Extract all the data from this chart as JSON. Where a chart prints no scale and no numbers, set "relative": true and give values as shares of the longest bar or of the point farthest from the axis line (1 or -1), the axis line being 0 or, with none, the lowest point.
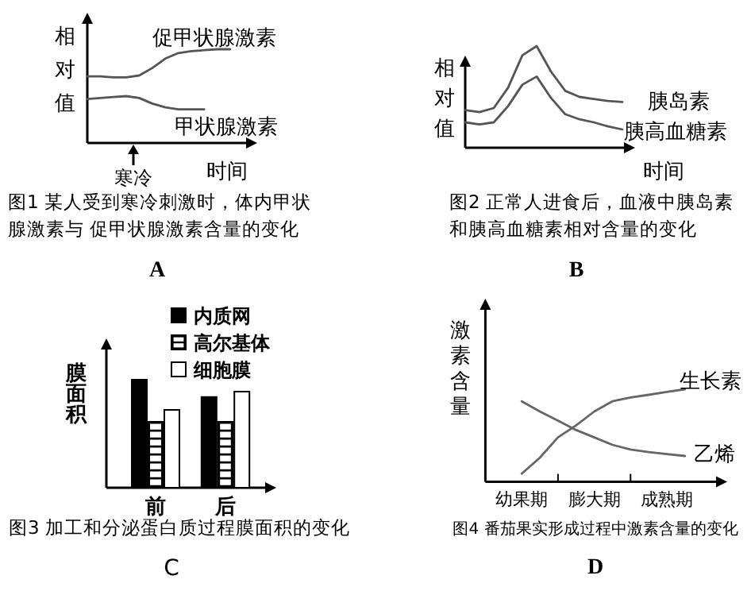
{
  "chart_data": [
    {
      "type": "line",
      "relative": true,
      "title": "图1 某人受到寒冷刺激时，体内甲状腺激素与 促甲状腺激素含量的变化",
      "xlabel": "时间",
      "ylabel": "相对值",
      "annotations": [
        "寒冷",
        "A"
      ],
      "categories": [
        null,
        null,
        null,
        null,
        null,
        null,
        null,
        null,
        null,
        null,
        null,
        null
      ],
      "series": [
        {
          "name": "促甲状腺激素",
          "color": "#555555",
          "values": [
            0.71,
            0.71,
            0.7,
            0.7,
            0.72,
            0.8,
            0.9,
            0.96,
            0.98,
            0.99,
            1,
            1
          ]
        },
        {
          "name": "甲状腺激素",
          "color": "#555555",
          "values": [
            0.47,
            0.48,
            0.49,
            0.5,
            0.48,
            0.42,
            0.38,
            0.36,
            0.36,
            0.36,
            null,
            null
          ]
        }
      ]
    },
    {
      "type": "line",
      "relative": true,
      "title": "图2 正常人进食后，血液中胰岛素和胰高血糖素相对含量的变化",
      "xlabel": "时间",
      "ylabel": "相对值",
      "annotations": [
        "B"
      ],
      "categories": [
        null,
        null,
        null,
        null,
        null,
        null,
        null,
        null,
        null,
        null,
        null,
        null
      ],
      "series": [
        {
          "name": "胰岛素",
          "color": "#555555",
          "values": [
            0.37,
            0.35,
            0.39,
            0.59,
            0.91,
            1,
            0.75,
            0.56,
            0.5,
            0.48,
            0.46,
            0.45
          ]
        },
        {
          "name": "胰高血糖素",
          "color": "#555555",
          "values": [
            0.25,
            0.23,
            0.25,
            0.41,
            0.62,
            0.7,
            0.49,
            0.33,
            0.28,
            0.25,
            0.21,
            0.18
          ]
        }
      ]
    },
    {
      "type": "bar",
      "relative": true,
      "title": "图3 加工和分泌蛋白质过程膜面积的变化",
      "ylabel": "膜面积",
      "annotations": [
        "C"
      ],
      "tick_labels": "x",
      "legend": "top",
      "categories": [
        "前",
        "后"
      ],
      "series": [
        {
          "name": "内质网",
          "color": "#000000",
          "values": [
            1,
            0.84
          ]
        },
        {
          "name": "高尔基体",
          "color": "#000000",
          "values": [
            0.61,
            0.61
          ]
        },
        {
          "name": "细胞膜",
          "color": "#ffffff",
          "values": [
            0.72,
            0.89
          ]
        }
      ]
    },
    {
      "type": "line",
      "relative": true,
      "title": "图4 番茄果实形成过程中激素含量的变化",
      "ylabel": "激素含量",
      "annotations": [
        "D"
      ],
      "tick_labels": "x",
      "categories": [
        "幼果期",
        null,
        null,
        null,
        "膨大期",
        null,
        null,
        null,
        "成熟期",
        null
      ],
      "series": [
        {
          "name": "生长素",
          "color": "#666666",
          "values": [
            0.09,
            0.26,
            0.48,
            0.61,
            0.76,
            0.87,
            0.91,
            0.94,
            0.97,
            1
          ]
        },
        {
          "name": "乙烯",
          "color": "#666666",
          "values": [
            0.87,
            0.76,
            0.66,
            0.56,
            0.48,
            0.4,
            0.35,
            0.32,
            0.3,
            0.28
          ]
        }
      ]
    }
  ]
}
